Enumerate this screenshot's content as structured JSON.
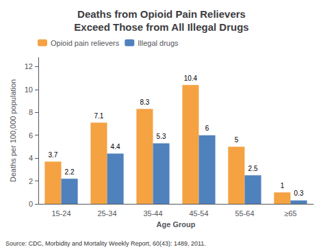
{
  "chart_data": {
    "type": "bar",
    "title": "Deaths from Opioid Pain Relievers\nExceed Those from All Illegal Drugs",
    "categories": [
      "15-24",
      "25-34",
      "35-44",
      "45-54",
      "55-64",
      "≥65"
    ],
    "series": [
      {
        "name": "Opioid pain relievers",
        "color": "#F5A243",
        "values": [
          3.7,
          7.1,
          8.3,
          10.4,
          5.0,
          1.0
        ]
      },
      {
        "name": "Illegal drugs",
        "color": "#4F81BD",
        "values": [
          2.2,
          4.4,
          5.3,
          6.0,
          2.5,
          0.3
        ]
      }
    ],
    "xlabel": "Age Group",
    "ylabel": "Deaths per 100,000 population",
    "ylim": [
      0,
      12.8
    ],
    "yticks": [
      0,
      2,
      4,
      6,
      8,
      10,
      12
    ],
    "grid": false,
    "legend": "upper left",
    "data_labels": true,
    "annotations": [
      "Source: CDC, Morbidity and Mortality Weekly Report, 60(43): 1489, 2011."
    ]
  }
}
